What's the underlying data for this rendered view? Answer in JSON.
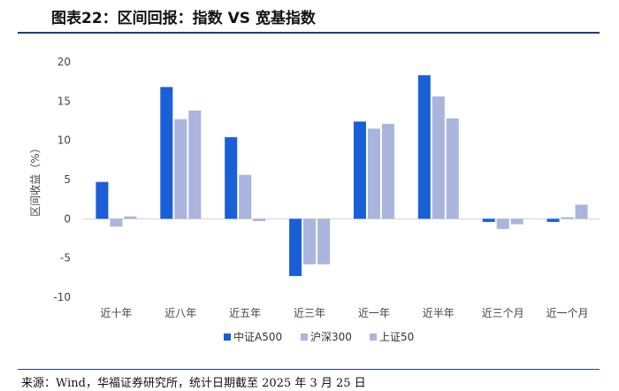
{
  "header": {
    "title": "图表22：区间回报：指数 VS 宽基指数"
  },
  "footer": {
    "source": "来源：Wind，华福证券研究所，统计日期截至 2025 年 3 月 25 日"
  },
  "chart_data": {
    "type": "bar",
    "title": "图表22：区间回报：指数 VS 宽基指数",
    "xlabel": "",
    "ylabel": "区间收益（%）",
    "ylim": [
      -10,
      20
    ],
    "yticks": [
      -10,
      -5,
      0,
      5,
      10,
      15,
      20
    ],
    "categories": [
      "近十年",
      "近八年",
      "近五年",
      "近三年",
      "近一年",
      "近半年",
      "近三个月",
      "近一个月"
    ],
    "series": [
      {
        "name": "中证A500",
        "color": "#1a5fd8",
        "values": [
          4.7,
          16.8,
          10.4,
          -7.3,
          12.4,
          18.3,
          -0.4,
          -0.4
        ]
      },
      {
        "name": "沪深300",
        "color": "#aab5de",
        "values": [
          -1.0,
          12.7,
          5.6,
          -5.8,
          11.5,
          15.6,
          -1.3,
          0.2
        ]
      },
      {
        "name": "上证50",
        "color": "#aab5de",
        "values": [
          0.3,
          13.8,
          -0.3,
          -5.8,
          12.1,
          12.8,
          -0.7,
          1.8
        ]
      }
    ],
    "legend_position": "bottom",
    "grid": false
  }
}
